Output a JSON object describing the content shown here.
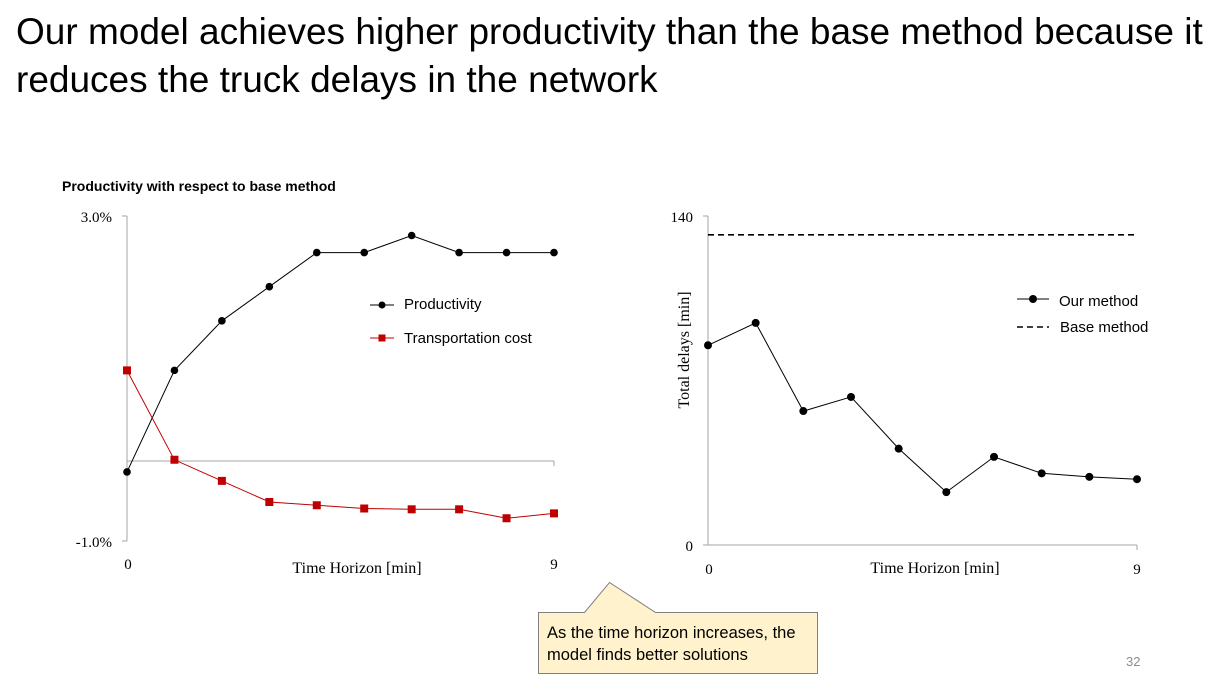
{
  "slide": {
    "title": "Our model achieves higher productivity than the base method because it reduces the truck delays in the network",
    "callout": "As the time horizon increases, the model finds better solutions",
    "page_number": "32",
    "colors": {
      "productivity": "#000000",
      "transportation_cost": "#c00000",
      "callout_fill": "#fff2cc",
      "callout_border": "#808080"
    }
  },
  "chart_data": [
    {
      "type": "line",
      "title": "Productivity with respect to base method",
      "xlabel": "Time Horizon [min]",
      "ylabel": "",
      "x_tick_labels": [
        "0",
        "9"
      ],
      "y_tick_labels": [
        "3.0%",
        "-1.0%"
      ],
      "xlim": [
        0,
        9
      ],
      "ylim": [
        -1.0,
        3.0
      ],
      "x": [
        0,
        1,
        2,
        3,
        4,
        5,
        6,
        7,
        8,
        9
      ],
      "series": [
        {
          "name": "Productivity",
          "marker": "circle",
          "values": [
            -0.15,
            1.1,
            1.71,
            2.13,
            2.55,
            2.55,
            2.76,
            2.55,
            2.55,
            2.55
          ]
        },
        {
          "name": "Transportation cost",
          "marker": "square",
          "values": [
            1.1,
            0.0,
            -0.26,
            -0.52,
            -0.56,
            -0.6,
            -0.61,
            -0.61,
            -0.72,
            -0.66
          ]
        }
      ],
      "legend_position": "center-right"
    },
    {
      "type": "line",
      "title": "",
      "xlabel": "Time Horizon [min]",
      "ylabel": "Total delays [min]",
      "x_tick_labels": [
        "0",
        "9"
      ],
      "y_tick_labels": [
        "140",
        "0"
      ],
      "xlim": [
        0,
        9
      ],
      "ylim": [
        0,
        140
      ],
      "x": [
        0,
        1,
        2,
        3,
        4,
        5,
        6,
        7,
        8,
        9
      ],
      "series": [
        {
          "name": "Our method",
          "marker": "circle",
          "style": "solid",
          "values": [
            85,
            94.5,
            57,
            63,
            41,
            22.5,
            37.5,
            30.5,
            29,
            28
          ]
        },
        {
          "name": "Base method",
          "style": "dashed",
          "values": [
            132,
            132,
            132,
            132,
            132,
            132,
            132,
            132,
            132,
            132
          ]
        }
      ],
      "legend_position": "top-right"
    }
  ]
}
